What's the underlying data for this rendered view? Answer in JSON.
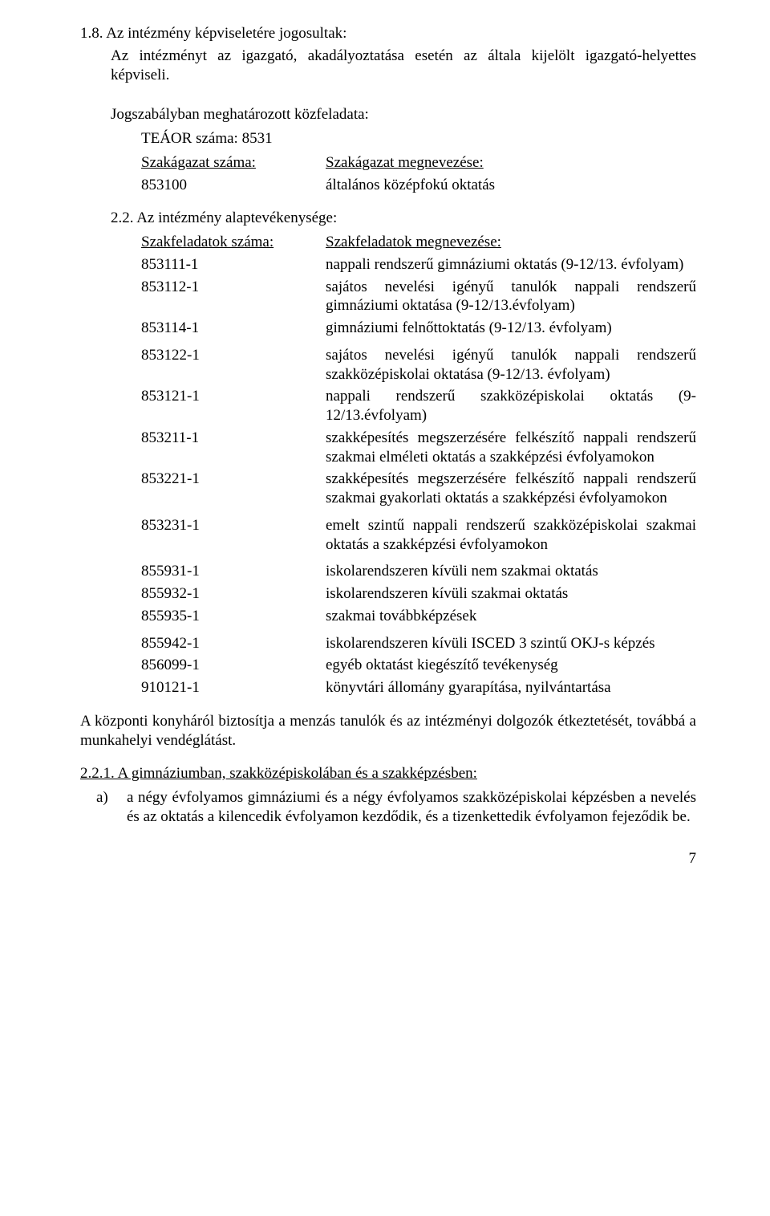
{
  "s18": {
    "heading": "1.8. Az intézmény képviseletére jogosultak:",
    "body": "Az intézményt az igazgató, akadályoztatása esetén az általa kijelölt igazgató-helyettes képviseli."
  },
  "jog": {
    "title": "Jogszabályban meghatározott közfeladata:",
    "teaor": "TEÁOR száma: 8531",
    "szak_left_label": "Szakágazat száma:",
    "szak_left_val": "853100",
    "szak_right_label": "Szakágazat megnevezése:",
    "szak_right_val": "általános középfokú oktatás"
  },
  "s22": {
    "heading": "2.2. Az intézmény alaptevékenysége:",
    "left_label": "Szakfeladatok száma:",
    "right_label": "Szakfeladatok megnevezése:",
    "rows": [
      {
        "code": "853111-1",
        "desc": "nappali rendszerű gimnáziumi oktatás (9-12/13. évfolyam)"
      },
      {
        "code": "853112-1",
        "desc": "sajátos nevelési igényű tanulók nappali rendszerű gimnáziumi oktatása (9-12/13.évfolyam)"
      },
      {
        "code": "853114-1",
        "desc": "gimnáziumi felnőttoktatás (9-12/13. évfolyam)"
      },
      {
        "code": "853122-1",
        "desc": "sajátos nevelési igényű tanulók nappali rendszerű szakközépiskolai oktatása (9-12/13. évfolyam)"
      },
      {
        "code": "853121-1",
        "desc": "nappali rendszerű szakközépiskolai oktatás (9-12/13.évfolyam)"
      },
      {
        "code": "853211-1",
        "desc": "szakképesítés megszerzésére felkészítő nappali rendszerű szakmai elméleti oktatás a szakképzési évfolyamokon"
      },
      {
        "code": "853221-1",
        "desc": "szakképesítés megszerzésére felkészítő nappali rendszerű szakmai gyakorlati oktatás a szakképzési évfolyamokon"
      },
      {
        "code": "853231-1",
        "desc": "emelt szintű nappali rendszerű szakközépiskolai szakmai oktatás a szakképzési évfolyamokon"
      },
      {
        "code": "855931-1",
        "desc": "iskolarendszeren kívüli nem szakmai oktatás"
      },
      {
        "code": "855932-1",
        "desc": "iskolarendszeren kívüli szakmai oktatás"
      },
      {
        "code": "855935-1",
        "desc": "szakmai továbbképzések"
      },
      {
        "code": "855942-1",
        "desc": "iskolarendszeren kívüli ISCED 3 szintű OKJ-s képzés"
      },
      {
        "code": "856099-1",
        "desc": "egyéb oktatást kiegészítő tevékenység"
      },
      {
        "code": "910121-1",
        "desc": "könyvtári állomány gyarapítása, nyilvántartása"
      }
    ]
  },
  "konyha": "A központi konyháról biztosítja a menzás tanulók és az intézményi dolgozók étkeztetését, továbbá a munkahelyi vendéglátást.",
  "s221": {
    "heading": "2.2.1. A gimnáziumban, szakközépiskolában és a szakképzésben:",
    "a_marker": "a)",
    "a_body": "a négy évfolyamos gimnáziumi és a négy évfolyamos szakközépiskolai képzésben a nevelés és az oktatás a kilencedik évfolyamon kezdődik, és a tizenkettedik évfolyamon fejeződik be."
  },
  "page_number": "7"
}
